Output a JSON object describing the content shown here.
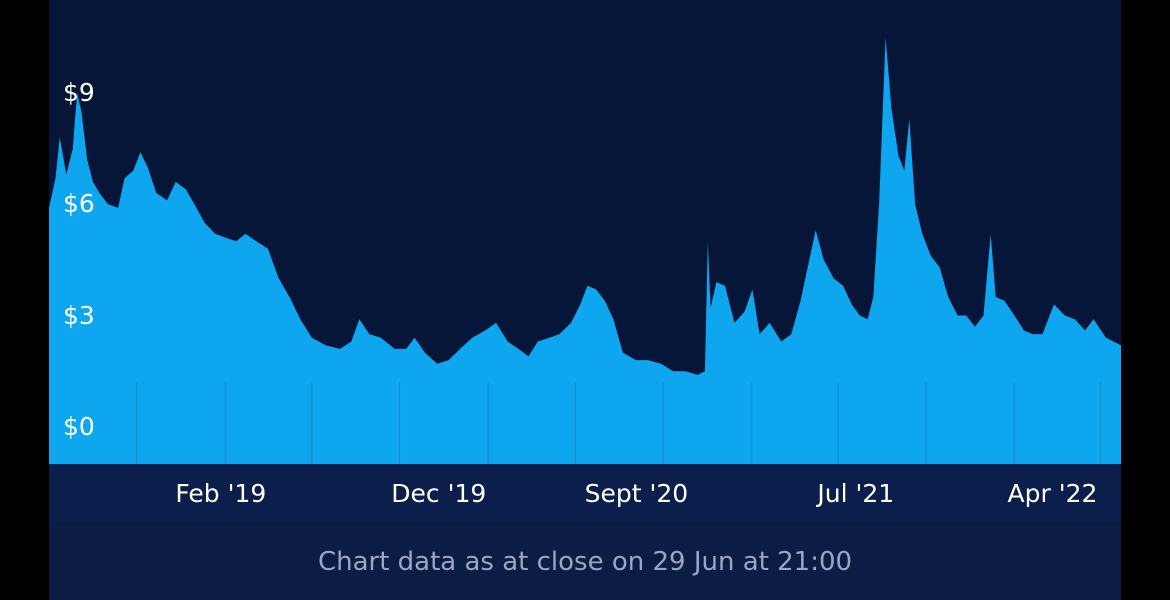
{
  "colors": {
    "background": "#061638",
    "area_fill": "#0ea6ee",
    "axis_band": "#0c1e4b",
    "text": "#ffffff",
    "footnote_text": "#9aa6c2"
  },
  "footnote": "Chart data as at close on 29 Jun at 21:00",
  "chart_data": {
    "type": "area",
    "title": "",
    "xlabel": "",
    "ylabel": "",
    "ylim": [
      -1.0,
      11.5
    ],
    "xlim": [
      "2018-06-01",
      "2022-06-29"
    ],
    "grid": false,
    "y_ticks": [
      {
        "value": 0,
        "label": "$0"
      },
      {
        "value": 3,
        "label": "$3"
      },
      {
        "value": 6,
        "label": "$6"
      },
      {
        "value": 9,
        "label": "$9"
      }
    ],
    "x_ticks": [
      {
        "date": "2019-02-01",
        "label": "Feb '19"
      },
      {
        "date": "2019-12-01",
        "label": "Dec '19"
      },
      {
        "date": "2020-09-01",
        "label": "Sept '20"
      },
      {
        "date": "2021-07-01",
        "label": "Jul '21"
      },
      {
        "date": "2022-04-01",
        "label": "Apr '22"
      }
    ],
    "series": [
      {
        "points": [
          [
            "2018-06-01",
            5.9
          ],
          [
            "2018-06-10",
            6.7
          ],
          [
            "2018-06-16",
            7.8
          ],
          [
            "2018-06-25",
            6.8
          ],
          [
            "2018-07-04",
            7.5
          ],
          [
            "2018-07-10",
            9.0
          ],
          [
            "2018-07-16",
            8.5
          ],
          [
            "2018-07-24",
            7.2
          ],
          [
            "2018-08-01",
            6.6
          ],
          [
            "2018-08-10",
            6.3
          ],
          [
            "2018-08-22",
            6.0
          ],
          [
            "2018-09-05",
            5.9
          ],
          [
            "2018-09-14",
            6.7
          ],
          [
            "2018-09-26",
            6.9
          ],
          [
            "2018-10-06",
            7.4
          ],
          [
            "2018-10-16",
            7.0
          ],
          [
            "2018-10-28",
            6.3
          ],
          [
            "2018-11-12",
            6.1
          ],
          [
            "2018-11-24",
            6.6
          ],
          [
            "2018-12-08",
            6.4
          ],
          [
            "2018-12-20",
            6.0
          ],
          [
            "2019-01-03",
            5.5
          ],
          [
            "2019-01-18",
            5.2
          ],
          [
            "2019-02-01",
            5.1
          ],
          [
            "2019-02-16",
            5.0
          ],
          [
            "2019-03-01",
            5.2
          ],
          [
            "2019-03-16",
            5.0
          ],
          [
            "2019-04-01",
            4.8
          ],
          [
            "2019-04-16",
            4.0
          ],
          [
            "2019-05-01",
            3.5
          ],
          [
            "2019-05-16",
            2.9
          ],
          [
            "2019-06-01",
            2.4
          ],
          [
            "2019-06-20",
            2.2
          ],
          [
            "2019-07-10",
            2.1
          ],
          [
            "2019-07-26",
            2.3
          ],
          [
            "2019-08-06",
            2.9
          ],
          [
            "2019-08-20",
            2.5
          ],
          [
            "2019-09-05",
            2.4
          ],
          [
            "2019-09-24",
            2.1
          ],
          [
            "2019-10-10",
            2.1
          ],
          [
            "2019-10-22",
            2.4
          ],
          [
            "2019-11-05",
            2.0
          ],
          [
            "2019-11-22",
            1.7
          ],
          [
            "2019-12-08",
            1.8
          ],
          [
            "2019-12-24",
            2.1
          ],
          [
            "2020-01-10",
            2.4
          ],
          [
            "2020-01-28",
            2.6
          ],
          [
            "2020-02-12",
            2.8
          ],
          [
            "2020-02-28",
            2.3
          ],
          [
            "2020-03-14",
            2.1
          ],
          [
            "2020-03-28",
            1.9
          ],
          [
            "2020-04-10",
            2.3
          ],
          [
            "2020-04-26",
            2.4
          ],
          [
            "2020-05-10",
            2.5
          ],
          [
            "2020-05-26",
            2.8
          ],
          [
            "2020-06-08",
            3.3
          ],
          [
            "2020-06-18",
            3.8
          ],
          [
            "2020-06-30",
            3.7
          ],
          [
            "2020-07-12",
            3.4
          ],
          [
            "2020-07-24",
            2.9
          ],
          [
            "2020-08-06",
            2.0
          ],
          [
            "2020-08-24",
            1.8
          ],
          [
            "2020-09-10",
            1.8
          ],
          [
            "2020-09-28",
            1.7
          ],
          [
            "2020-10-15",
            1.5
          ],
          [
            "2020-11-01",
            1.5
          ],
          [
            "2020-11-18",
            1.4
          ],
          [
            "2020-11-28",
            1.5
          ],
          [
            "2020-12-02",
            5.0
          ],
          [
            "2020-12-06",
            3.2
          ],
          [
            "2020-12-14",
            3.9
          ],
          [
            "2020-12-26",
            3.8
          ],
          [
            "2021-01-08",
            2.8
          ],
          [
            "2021-01-22",
            3.1
          ],
          [
            "2021-02-02",
            3.7
          ],
          [
            "2021-02-12",
            2.5
          ],
          [
            "2021-02-26",
            2.8
          ],
          [
            "2021-03-14",
            2.3
          ],
          [
            "2021-03-28",
            2.5
          ],
          [
            "2021-04-10",
            3.4
          ],
          [
            "2021-04-22",
            4.5
          ],
          [
            "2021-05-01",
            5.3
          ],
          [
            "2021-05-12",
            4.5
          ],
          [
            "2021-05-26",
            4.0
          ],
          [
            "2021-06-08",
            3.8
          ],
          [
            "2021-06-20",
            3.3
          ],
          [
            "2021-07-01",
            3.0
          ],
          [
            "2021-07-12",
            2.9
          ],
          [
            "2021-07-20",
            3.5
          ],
          [
            "2021-07-28",
            6.0
          ],
          [
            "2021-08-06",
            10.5
          ],
          [
            "2021-08-14",
            8.6
          ],
          [
            "2021-08-24",
            7.3
          ],
          [
            "2021-09-01",
            6.9
          ],
          [
            "2021-09-08",
            8.3
          ],
          [
            "2021-09-16",
            6.0
          ],
          [
            "2021-09-26",
            5.2
          ],
          [
            "2021-10-08",
            4.6
          ],
          [
            "2021-10-20",
            4.3
          ],
          [
            "2021-11-01",
            3.5
          ],
          [
            "2021-11-14",
            3.0
          ],
          [
            "2021-11-26",
            3.0
          ],
          [
            "2021-12-08",
            2.7
          ],
          [
            "2021-12-20",
            3.0
          ],
          [
            "2021-12-30",
            5.2
          ],
          [
            "2022-01-06",
            3.5
          ],
          [
            "2022-01-18",
            3.4
          ],
          [
            "2022-02-01",
            3.0
          ],
          [
            "2022-02-14",
            2.6
          ],
          [
            "2022-02-26",
            2.5
          ],
          [
            "2022-03-12",
            2.5
          ],
          [
            "2022-03-28",
            3.3
          ],
          [
            "2022-04-12",
            3.0
          ],
          [
            "2022-04-26",
            2.9
          ],
          [
            "2022-05-10",
            2.6
          ],
          [
            "2022-05-22",
            2.9
          ],
          [
            "2022-06-08",
            2.4
          ],
          [
            "2022-06-29",
            2.2
          ]
        ]
      }
    ]
  }
}
